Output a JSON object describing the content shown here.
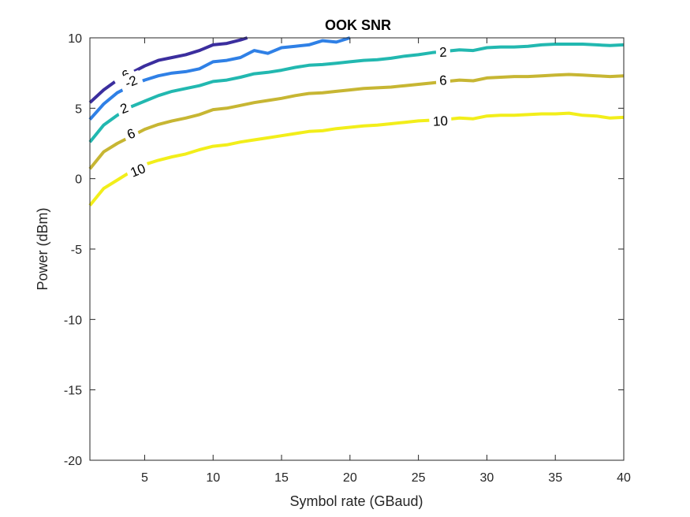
{
  "chart_data": {
    "type": "line",
    "title": "OOK SNR",
    "xlabel": "Symbol rate (GBaud)",
    "ylabel": "Power (dBm)",
    "xlim": [
      1,
      40
    ],
    "ylim": [
      -20,
      10
    ],
    "xticks": [
      5,
      10,
      15,
      20,
      25,
      30,
      35,
      40
    ],
    "xtick_labels": [
      "5",
      "10",
      "15",
      "20",
      "25",
      "30",
      "35",
      "40"
    ],
    "yticks": [
      -20,
      -15,
      -10,
      -5,
      0,
      5,
      10
    ],
    "ytick_labels": [
      "-20",
      "-15",
      "-10",
      "-5",
      "0",
      "5",
      "10"
    ],
    "grid": false,
    "series": [
      {
        "level": "-6",
        "color": "#3b2e9e",
        "x": [
          1,
          2,
          3,
          4,
          5,
          6,
          7,
          8,
          9,
          10,
          11,
          12,
          12.5
        ],
        "y": [
          5.4,
          6.3,
          7.0,
          7.5,
          8.0,
          8.4,
          8.6,
          8.8,
          9.1,
          9.5,
          9.6,
          9.85,
          10.0
        ],
        "labels": [
          {
            "text": "-6",
            "x": 3.5,
            "y": 7.3,
            "angle": -30
          }
        ]
      },
      {
        "level": "-2",
        "color": "#2f80e6",
        "x": [
          1,
          2,
          3,
          4,
          5,
          6,
          7,
          8,
          9,
          10,
          11,
          12,
          13,
          14,
          15,
          16,
          17,
          18,
          19,
          20
        ],
        "y": [
          4.2,
          5.3,
          6.1,
          6.6,
          7.0,
          7.3,
          7.5,
          7.6,
          7.8,
          8.3,
          8.4,
          8.6,
          9.1,
          8.9,
          9.3,
          9.4,
          9.5,
          9.8,
          9.7,
          10.0
        ],
        "labels": [
          {
            "text": "-2",
            "x": 4.0,
            "y": 6.9,
            "angle": -22
          }
        ]
      },
      {
        "level": "2",
        "color": "#22b8b0",
        "x": [
          1,
          2,
          3,
          4,
          5,
          6,
          7,
          8,
          9,
          10,
          11,
          12,
          13,
          14,
          15,
          16,
          17,
          18,
          19,
          20,
          21,
          22,
          23,
          24,
          25,
          26,
          27,
          28,
          29,
          30,
          31,
          32,
          33,
          34,
          35,
          36,
          37,
          38,
          39,
          40
        ],
        "y": [
          2.6,
          3.8,
          4.5,
          5.1,
          5.5,
          5.9,
          6.2,
          6.4,
          6.6,
          6.9,
          7.0,
          7.2,
          7.45,
          7.55,
          7.7,
          7.9,
          8.05,
          8.1,
          8.2,
          8.3,
          8.4,
          8.45,
          8.55,
          8.7,
          8.8,
          8.95,
          9.05,
          9.15,
          9.1,
          9.3,
          9.35,
          9.35,
          9.4,
          9.5,
          9.55,
          9.55,
          9.55,
          9.5,
          9.45,
          9.5
        ],
        "labels": [
          {
            "text": "2",
            "x": 3.5,
            "y": 5.0,
            "angle": -20
          },
          {
            "text": "2",
            "x": 26.8,
            "y": 9.0,
            "angle": -3
          }
        ]
      },
      {
        "level": "6",
        "color": "#c7b633",
        "x": [
          1,
          2,
          3,
          4,
          5,
          6,
          7,
          8,
          9,
          10,
          11,
          12,
          13,
          14,
          15,
          16,
          17,
          18,
          19,
          20,
          21,
          22,
          23,
          24,
          25,
          26,
          27,
          28,
          29,
          30,
          31,
          32,
          33,
          34,
          35,
          36,
          37,
          38,
          39,
          40
        ],
        "y": [
          0.7,
          1.9,
          2.5,
          3.0,
          3.5,
          3.85,
          4.1,
          4.3,
          4.55,
          4.9,
          5.0,
          5.2,
          5.4,
          5.55,
          5.7,
          5.9,
          6.05,
          6.1,
          6.2,
          6.3,
          6.4,
          6.45,
          6.5,
          6.6,
          6.7,
          6.8,
          6.9,
          7.0,
          6.95,
          7.15,
          7.2,
          7.25,
          7.25,
          7.3,
          7.35,
          7.4,
          7.35,
          7.3,
          7.25,
          7.3
        ],
        "labels": [
          {
            "text": "6",
            "x": 4.0,
            "y": 3.2,
            "angle": -22
          },
          {
            "text": "6",
            "x": 26.8,
            "y": 7.0,
            "angle": -3
          }
        ]
      },
      {
        "level": "10",
        "color": "#f2ee1a",
        "x": [
          1,
          2,
          3,
          4,
          5,
          6,
          7,
          8,
          9,
          10,
          11,
          12,
          13,
          14,
          15,
          16,
          17,
          18,
          19,
          20,
          21,
          22,
          23,
          24,
          25,
          26,
          27,
          28,
          29,
          30,
          31,
          32,
          33,
          34,
          35,
          36,
          37,
          38,
          39,
          40
        ],
        "y": [
          -1.9,
          -0.7,
          -0.1,
          0.5,
          1.0,
          1.3,
          1.55,
          1.75,
          2.05,
          2.3,
          2.4,
          2.6,
          2.75,
          2.9,
          3.05,
          3.2,
          3.35,
          3.4,
          3.55,
          3.65,
          3.75,
          3.8,
          3.9,
          4.0,
          4.1,
          4.15,
          4.2,
          4.3,
          4.25,
          4.45,
          4.5,
          4.5,
          4.55,
          4.6,
          4.6,
          4.65,
          4.5,
          4.45,
          4.3,
          4.35
        ],
        "labels": [
          {
            "text": "10",
            "x": 4.5,
            "y": 0.6,
            "angle": -22
          },
          {
            "text": "10",
            "x": 26.6,
            "y": 4.1,
            "angle": -3
          }
        ]
      }
    ]
  }
}
